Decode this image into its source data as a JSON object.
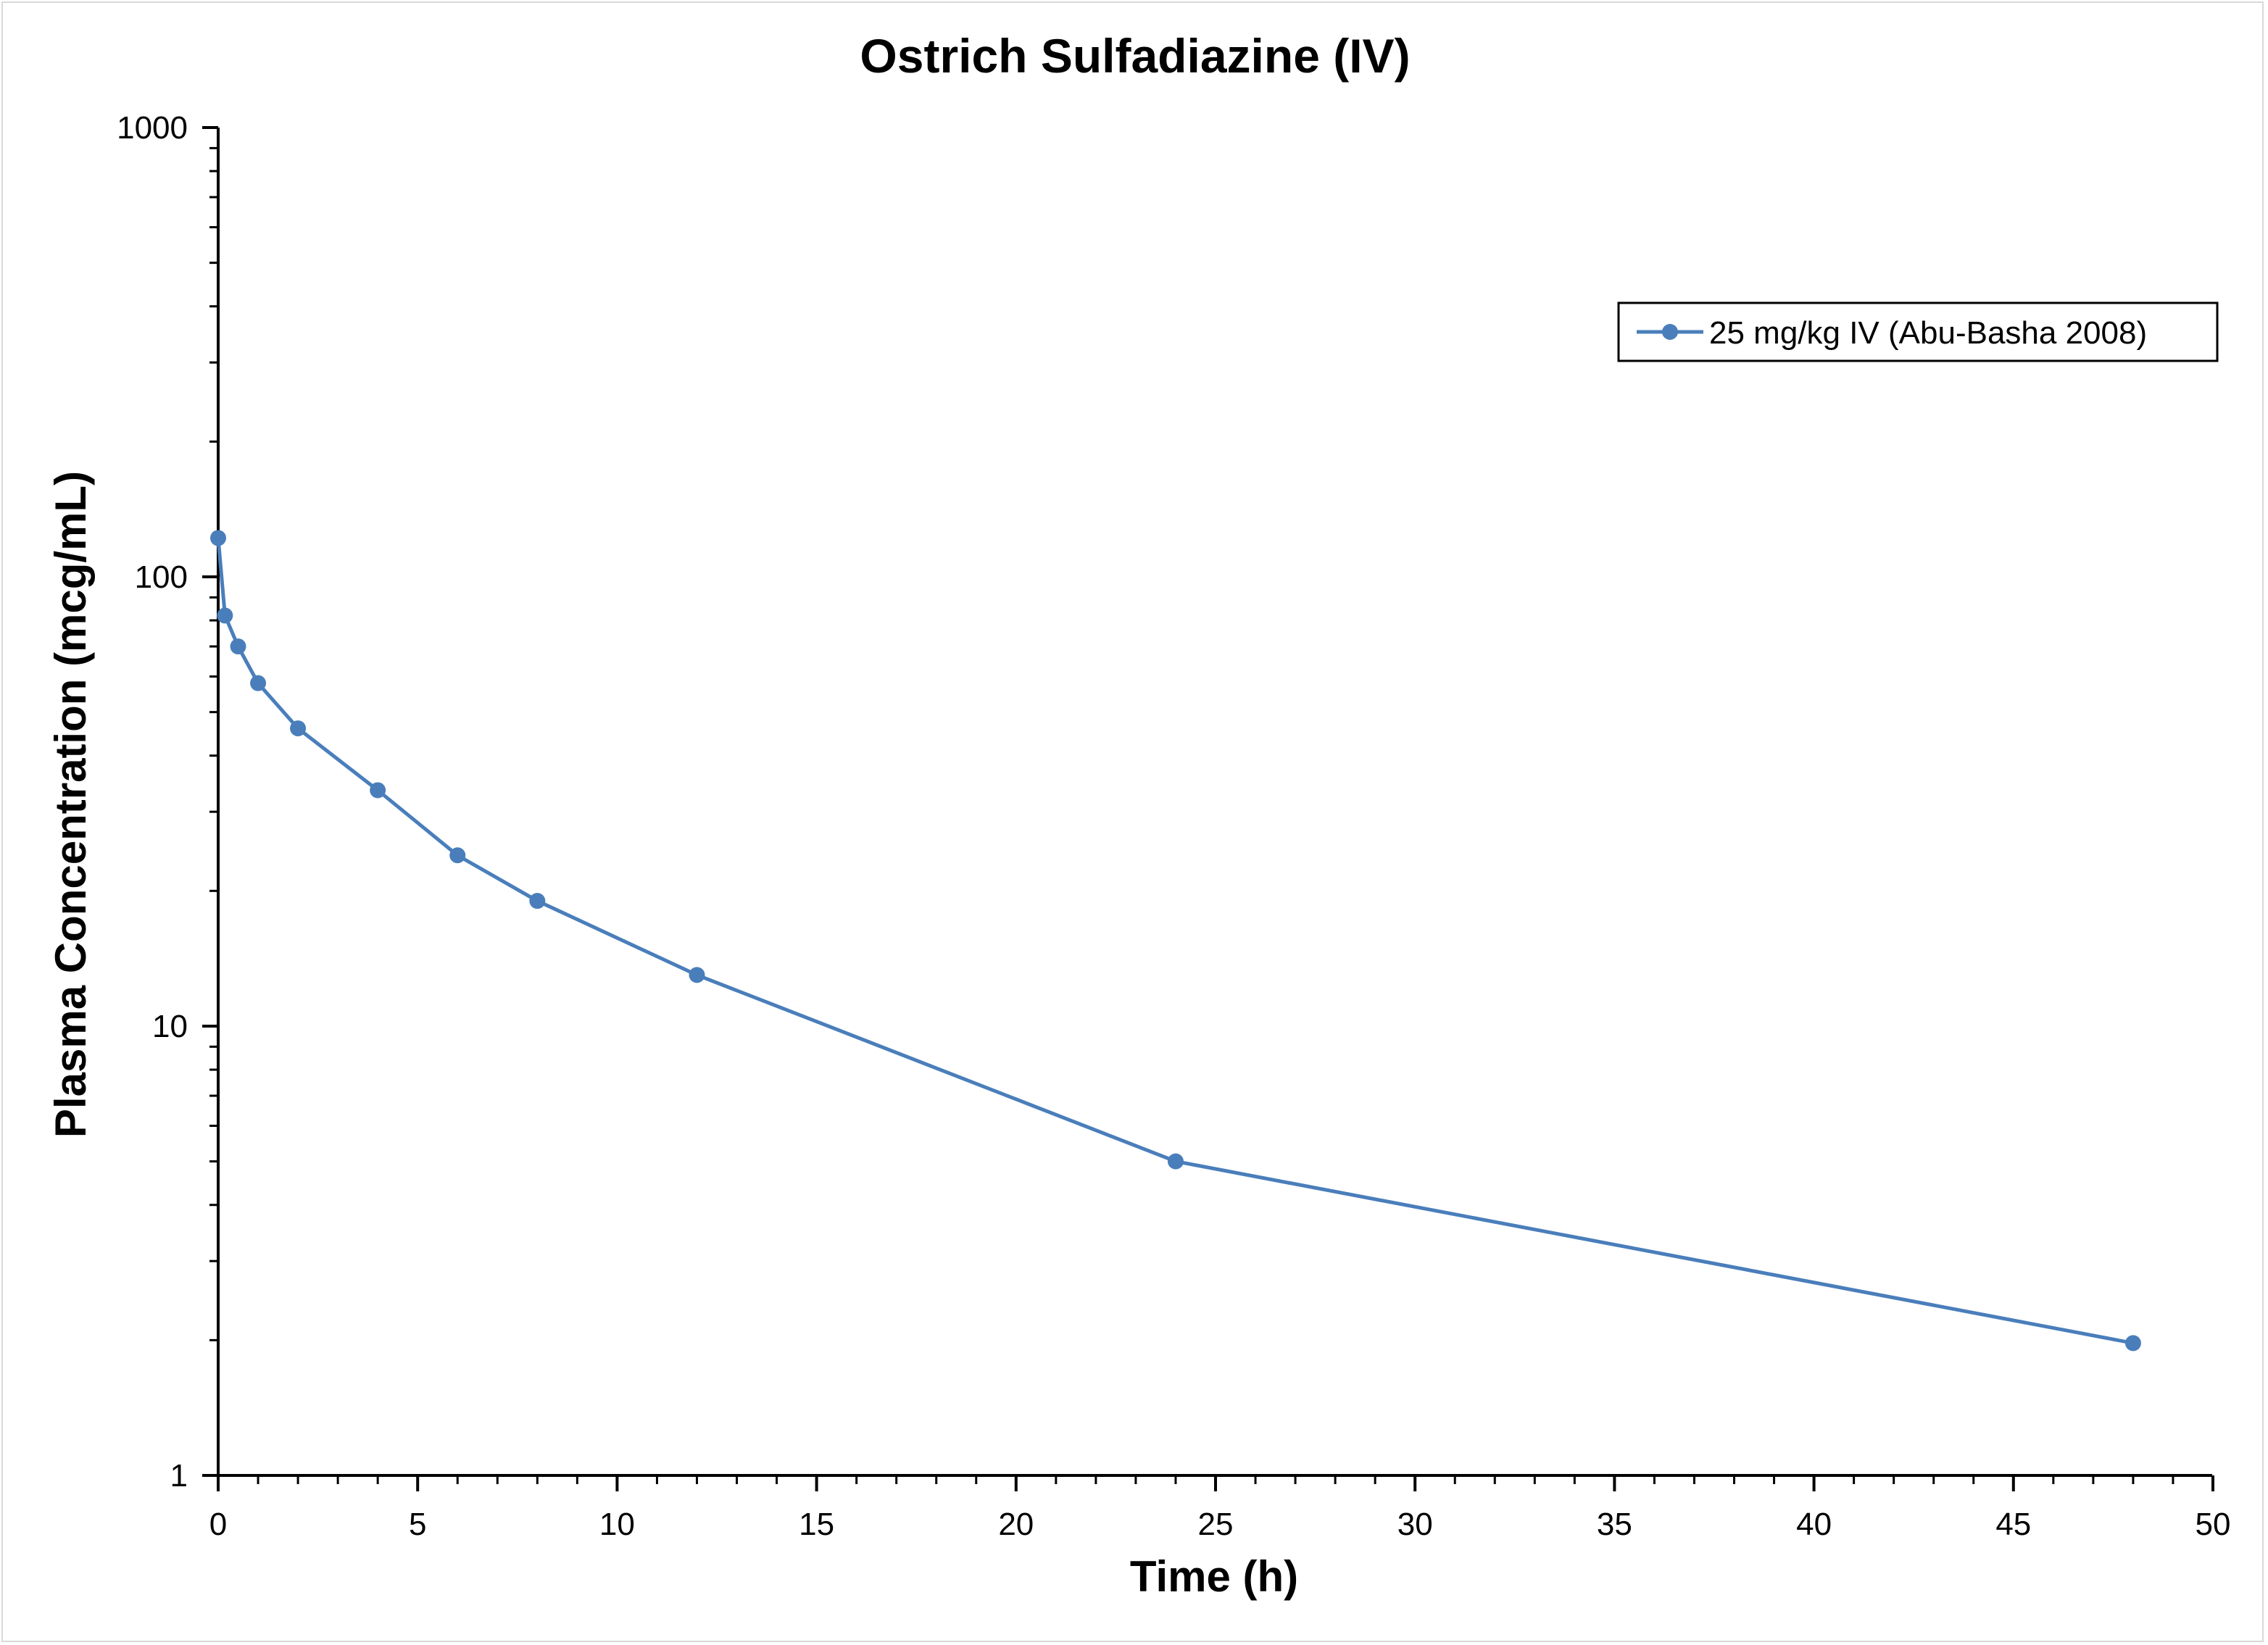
{
  "chart_data": {
    "type": "line",
    "title": "Ostrich Sulfadiazine (IV)",
    "xlabel": "Time (h)",
    "ylabel": "Plasma Concentration (mcg/mL)",
    "xlim": [
      0,
      50
    ],
    "ylim": [
      1,
      1000
    ],
    "yscale": "log",
    "x_ticks": [
      0,
      5,
      10,
      15,
      20,
      25,
      30,
      35,
      40,
      45,
      50
    ],
    "x_tick_labels": [
      "0",
      "5",
      "10",
      "15",
      "20",
      "25",
      "30",
      "35",
      "40",
      "45",
      "50"
    ],
    "y_ticks": [
      1,
      10,
      100,
      1000
    ],
    "y_tick_labels": [
      "1",
      "10",
      "100",
      "1000"
    ],
    "grid": false,
    "legend_position": "top-right",
    "series": [
      {
        "name": "25 mg/kg IV (Abu-Basha 2008)",
        "color": "#4a7ebb",
        "marker": "circle",
        "x": [
          0.0,
          0.17,
          0.5,
          1,
          2,
          4,
          6,
          8,
          12,
          24,
          48
        ],
        "y": [
          122,
          82,
          70,
          58,
          46,
          33.5,
          24,
          19,
          13,
          5,
          1.97
        ]
      }
    ]
  }
}
